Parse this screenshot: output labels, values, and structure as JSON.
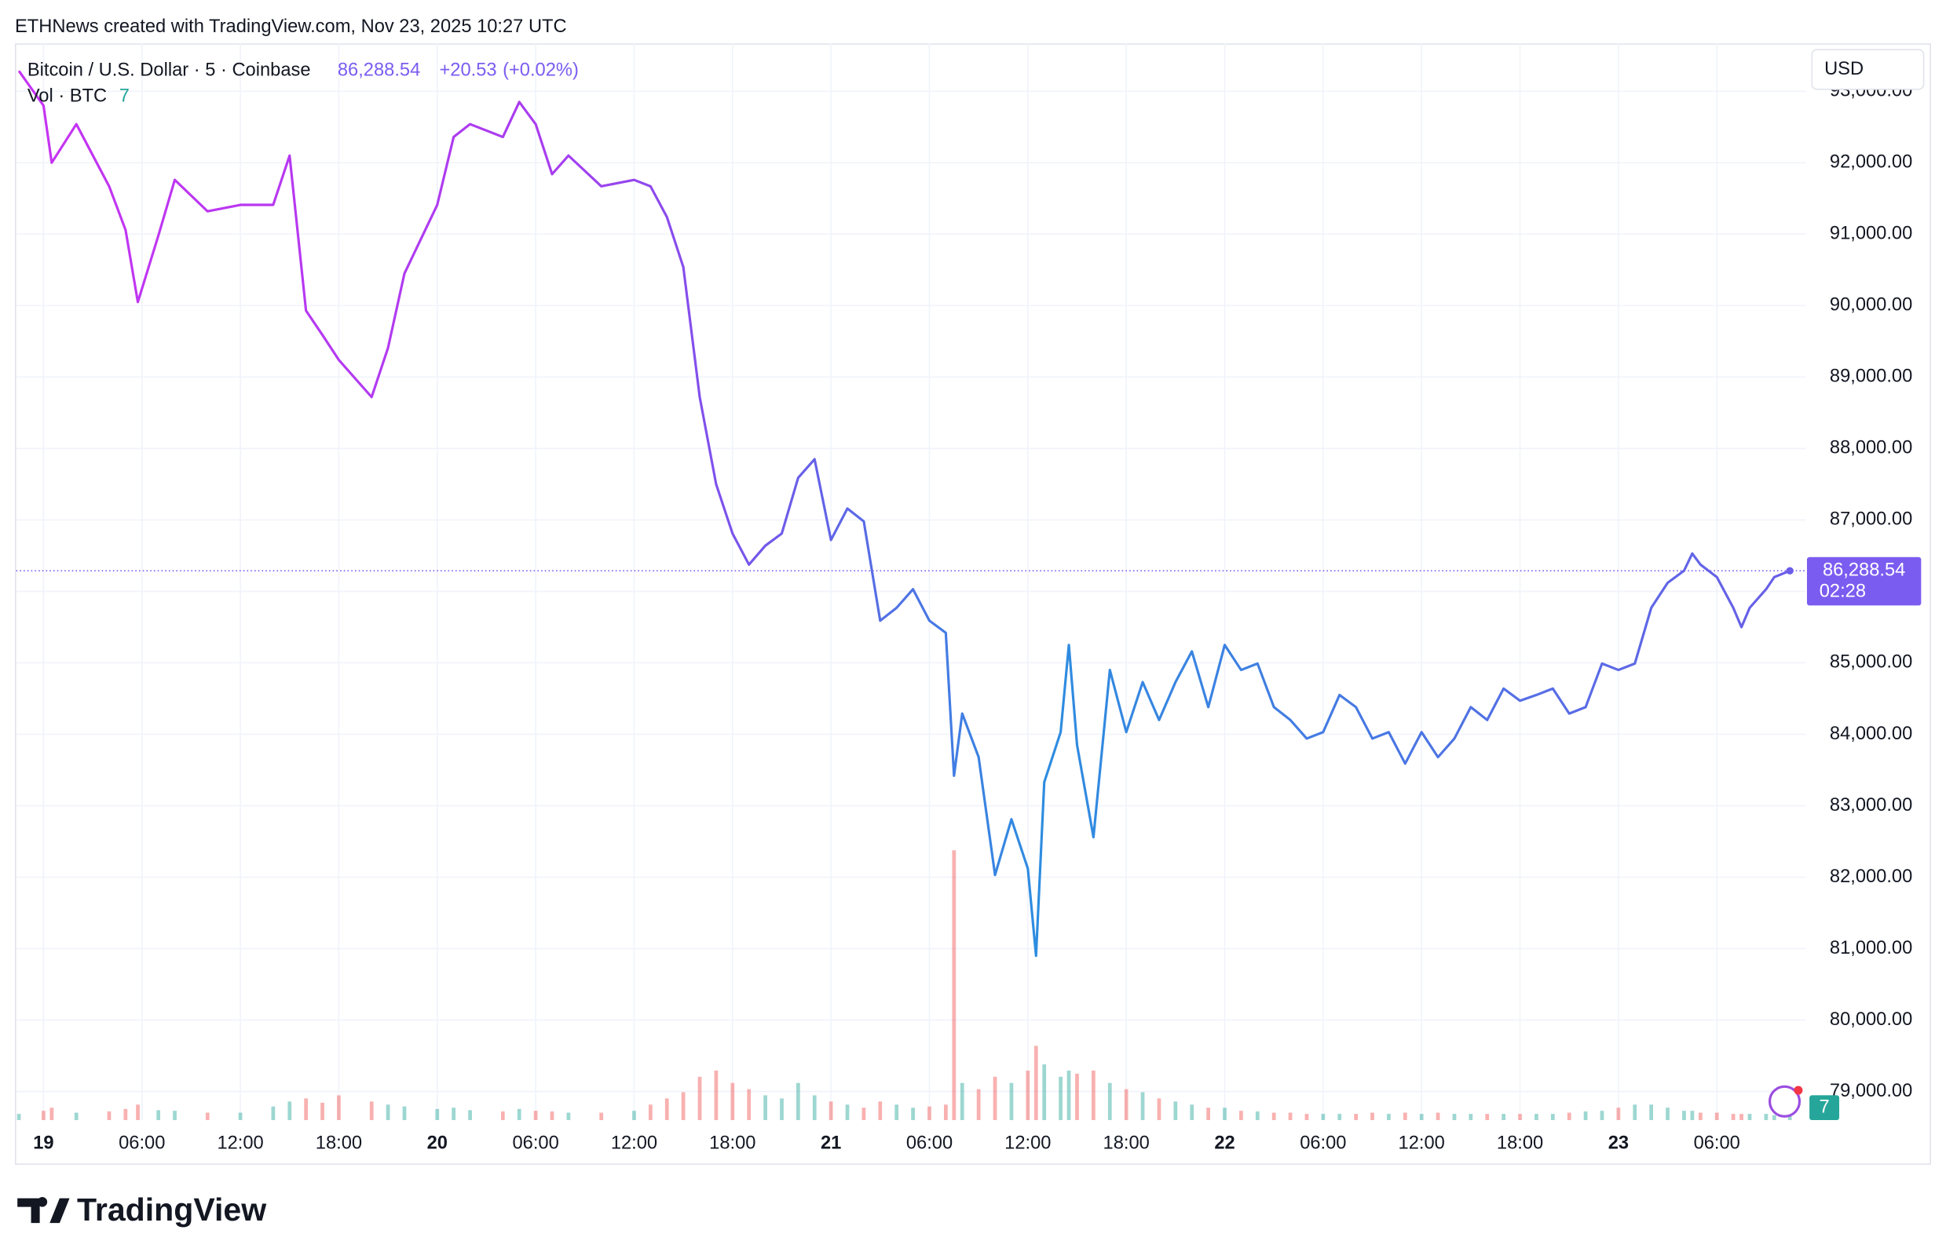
{
  "header": {
    "text": "ETHNews created with TradingView.com, Nov 23, 2025 10:27 UTC"
  },
  "footer": {
    "brand": "TradingView"
  },
  "chart_data": {
    "type": "line",
    "title": "Bitcoin / U.S. Dollar · 5 · Coinbase",
    "current_price": {
      "value": 86288.54,
      "label": "86,288.54"
    },
    "change": "+20.53",
    "change_pct": "(+0.02%)",
    "countdown": "02:28",
    "currency": "USD",
    "x": [
      "2025-11-18T22:30",
      "2025-11-19T00:00",
      "2025-11-19T00:30",
      "2025-11-19T02:00",
      "2025-11-19T04:00",
      "2025-11-19T05:00",
      "2025-11-19T05:45",
      "2025-11-19T07:00",
      "2025-11-19T08:00",
      "2025-11-19T10:00",
      "2025-11-19T12:00",
      "2025-11-19T14:00",
      "2025-11-19T15:00",
      "2025-11-19T16:00",
      "2025-11-19T17:00",
      "2025-11-19T18:00",
      "2025-11-19T20:00",
      "2025-11-19T21:00",
      "2025-11-19T22:00",
      "2025-11-20T00:00",
      "2025-11-20T01:00",
      "2025-11-20T02:00",
      "2025-11-20T04:00",
      "2025-11-20T05:00",
      "2025-11-20T06:00",
      "2025-11-20T07:00",
      "2025-11-20T08:00",
      "2025-11-20T10:00",
      "2025-11-20T12:00",
      "2025-11-20T13:00",
      "2025-11-20T14:00",
      "2025-11-20T15:00",
      "2025-11-20T16:00",
      "2025-11-20T17:00",
      "2025-11-20T18:00",
      "2025-11-20T19:00",
      "2025-11-20T20:00",
      "2025-11-20T21:00",
      "2025-11-20T22:00",
      "2025-11-20T23:00",
      "2025-11-21T00:00",
      "2025-11-21T01:00",
      "2025-11-21T02:00",
      "2025-11-21T03:00",
      "2025-11-21T04:00",
      "2025-11-21T05:00",
      "2025-11-21T06:00",
      "2025-11-21T07:00",
      "2025-11-21T07:30",
      "2025-11-21T08:00",
      "2025-11-21T09:00",
      "2025-11-21T10:00",
      "2025-11-21T11:00",
      "2025-11-21T12:00",
      "2025-11-21T12:30",
      "2025-11-21T13:00",
      "2025-11-21T14:00",
      "2025-11-21T14:30",
      "2025-11-21T15:00",
      "2025-11-21T16:00",
      "2025-11-21T17:00",
      "2025-11-21T18:00",
      "2025-11-21T19:00",
      "2025-11-21T20:00",
      "2025-11-21T21:00",
      "2025-11-21T22:00",
      "2025-11-21T23:00",
      "2025-11-22T00:00",
      "2025-11-22T01:00",
      "2025-11-22T02:00",
      "2025-11-22T03:00",
      "2025-11-22T04:00",
      "2025-11-22T05:00",
      "2025-11-22T06:00",
      "2025-11-22T07:00",
      "2025-11-22T08:00",
      "2025-11-22T09:00",
      "2025-11-22T10:00",
      "2025-11-22T11:00",
      "2025-11-22T12:00",
      "2025-11-22T13:00",
      "2025-11-22T14:00",
      "2025-11-22T15:00",
      "2025-11-22T16:00",
      "2025-11-22T17:00",
      "2025-11-22T18:00",
      "2025-11-22T19:00",
      "2025-11-22T20:00",
      "2025-11-22T21:00",
      "2025-11-22T22:00",
      "2025-11-22T23:00",
      "2025-11-23T00:00",
      "2025-11-23T01:00",
      "2025-11-23T02:00",
      "2025-11-23T03:00",
      "2025-11-23T04:00",
      "2025-11-23T04:30",
      "2025-11-23T05:00",
      "2025-11-23T06:00",
      "2025-11-23T07:00",
      "2025-11-23T07:30",
      "2025-11-23T08:00",
      "2025-11-23T09:00",
      "2025-11-23T09:30",
      "2025-11-23T10:27"
    ],
    "series": [
      {
        "name": "Bitcoin / U.S. Dollar",
        "colors": [
          "#c733f2",
          "#a83df0",
          "#7158ea",
          "#2d8de0",
          "#6b5de8"
        ],
        "values": [
          93285,
          92800,
          92000,
          92540,
          91670,
          91060,
          90050,
          90980,
          91760,
          91320,
          91410,
          91410,
          92100,
          89930,
          89590,
          89240,
          88720,
          89410,
          90450,
          91410,
          92360,
          92540,
          92360,
          92850,
          92540,
          91840,
          92100,
          91670,
          91760,
          91670,
          91240,
          90540,
          88720,
          87500,
          86810,
          86375,
          86640,
          86810,
          87590,
          87850,
          86720,
          87160,
          86980,
          85590,
          85770,
          86030,
          85590,
          85420,
          83420,
          84290,
          83680,
          82030,
          82810,
          82120,
          80900,
          83330,
          84030,
          85250,
          83850,
          82560,
          84900,
          84030,
          84730,
          84200,
          84730,
          85160,
          84380,
          85250,
          84900,
          84990,
          84380,
          84200,
          83940,
          84030,
          84550,
          84380,
          83940,
          84030,
          83590,
          84030,
          83680,
          83940,
          84380,
          84200,
          84640,
          84470,
          84550,
          84640,
          84290,
          84380,
          84990,
          84900,
          84990,
          85770,
          86120,
          86290,
          86530,
          86375,
          86200,
          85770,
          85500,
          85770,
          86030,
          86200,
          86288.54
        ]
      },
      {
        "name": "Vol · BTC",
        "axis": "y2",
        "up_color": "#26a69a",
        "down_color": "#ef5350",
        "values": [
          10,
          15,
          20,
          12,
          14,
          18,
          25,
          16,
          15,
          12,
          12,
          22,
          30,
          35,
          28,
          40,
          30,
          25,
          22,
          18,
          20,
          16,
          14,
          18,
          15,
          14,
          12,
          12,
          15,
          25,
          35,
          45,
          70,
          80,
          60,
          50,
          40,
          35,
          60,
          40,
          30,
          25,
          20,
          30,
          25,
          20,
          22,
          25,
          436,
          60,
          50,
          70,
          60,
          80,
          120,
          90,
          70,
          80,
          75,
          80,
          60,
          50,
          45,
          35,
          30,
          25,
          20,
          20,
          15,
          14,
          12,
          12,
          10,
          10,
          10,
          10,
          12,
          10,
          12,
          10,
          12,
          10,
          10,
          10,
          10,
          10,
          10,
          10,
          12,
          14,
          15,
          20,
          25,
          25,
          20,
          15,
          15,
          12,
          12,
          10,
          10,
          10,
          10,
          8,
          7
        ]
      }
    ],
    "xlim": [
      "2025-11-18T22:20",
      "2025-11-23T11:25"
    ],
    "xticks": [
      {
        "value": "2025-11-19T00:00",
        "label": "19"
      },
      {
        "value": "2025-11-19T06:00",
        "label": "06:00"
      },
      {
        "value": "2025-11-19T12:00",
        "label": "12:00"
      },
      {
        "value": "2025-11-19T18:00",
        "label": "18:00"
      },
      {
        "value": "2025-11-20T00:00",
        "label": "20"
      },
      {
        "value": "2025-11-20T06:00",
        "label": "06:00"
      },
      {
        "value": "2025-11-20T12:00",
        "label": "12:00"
      },
      {
        "value": "2025-11-20T18:00",
        "label": "18:00"
      },
      {
        "value": "2025-11-21T00:00",
        "label": "21"
      },
      {
        "value": "2025-11-21T06:00",
        "label": "06:00"
      },
      {
        "value": "2025-11-21T12:00",
        "label": "12:00"
      },
      {
        "value": "2025-11-21T18:00",
        "label": "18:00"
      },
      {
        "value": "2025-11-22T00:00",
        "label": "22"
      },
      {
        "value": "2025-11-22T06:00",
        "label": "06:00"
      },
      {
        "value": "2025-11-22T12:00",
        "label": "12:00"
      },
      {
        "value": "2025-11-22T18:00",
        "label": "18:00"
      },
      {
        "value": "2025-11-23T00:00",
        "label": "23"
      },
      {
        "value": "2025-11-23T06:00",
        "label": "06:00"
      }
    ],
    "ylim": [
      78600,
      93670
    ],
    "yticks": [
      {
        "value": 79000,
        "label": "79,000.00"
      },
      {
        "value": 80000,
        "label": "80,000.00"
      },
      {
        "value": 81000,
        "label": "81,000.00"
      },
      {
        "value": 82000,
        "label": "82,000.00"
      },
      {
        "value": 83000,
        "label": "83,000.00"
      },
      {
        "value": 84000,
        "label": "84,000.00"
      },
      {
        "value": 85000,
        "label": "85,000.00"
      },
      {
        "value": 86000,
        "label": "86,000.00"
      },
      {
        "value": 87000,
        "label": "87,000.00"
      },
      {
        "value": 88000,
        "label": "88,000.00"
      },
      {
        "value": 89000,
        "label": "89,000.00"
      },
      {
        "value": 90000,
        "label": "90,000.00"
      },
      {
        "value": 91000,
        "label": "91,000.00"
      },
      {
        "value": 92000,
        "label": "92,000.00"
      },
      {
        "value": 93000,
        "label": "93,000.00"
      }
    ],
    "y2lim": [
      0,
      1740
    ],
    "grid": true
  }
}
